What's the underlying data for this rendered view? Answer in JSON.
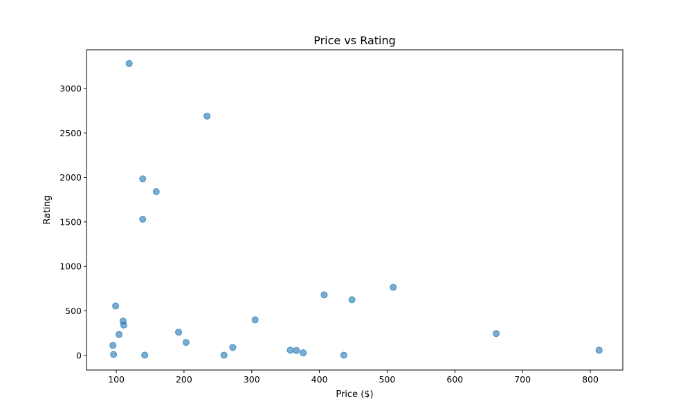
{
  "chart_data": {
    "type": "scatter",
    "title": "Price vs Rating",
    "xlabel": "Price ($)",
    "ylabel": "Rating",
    "xlim": [
      56,
      848
    ],
    "ylim": [
      -165,
      3435
    ],
    "xticks": [
      100,
      200,
      300,
      400,
      500,
      600,
      700,
      800
    ],
    "yticks": [
      0,
      500,
      1000,
      1500,
      2000,
      2500,
      3000
    ],
    "grid": false,
    "legend": "none",
    "colors": {
      "marker_fill": "#1f77b4",
      "marker_edge": "#1f77b4",
      "marker_alpha": 0.6
    },
    "points": [
      {
        "x": 119,
        "y": 3280
      },
      {
        "x": 234,
        "y": 2690
      },
      {
        "x": 139,
        "y": 1985
      },
      {
        "x": 159,
        "y": 1840
      },
      {
        "x": 139,
        "y": 1530
      },
      {
        "x": 99,
        "y": 555
      },
      {
        "x": 110,
        "y": 385
      },
      {
        "x": 111,
        "y": 340
      },
      {
        "x": 104,
        "y": 235
      },
      {
        "x": 95,
        "y": 112
      },
      {
        "x": 96,
        "y": 10
      },
      {
        "x": 142,
        "y": 2
      },
      {
        "x": 192,
        "y": 260
      },
      {
        "x": 203,
        "y": 145
      },
      {
        "x": 259,
        "y": 2
      },
      {
        "x": 272,
        "y": 90
      },
      {
        "x": 305,
        "y": 400
      },
      {
        "x": 357,
        "y": 58
      },
      {
        "x": 366,
        "y": 55
      },
      {
        "x": 376,
        "y": 28
      },
      {
        "x": 407,
        "y": 680
      },
      {
        "x": 436,
        "y": 2
      },
      {
        "x": 448,
        "y": 625
      },
      {
        "x": 509,
        "y": 765
      },
      {
        "x": 661,
        "y": 245
      },
      {
        "x": 813,
        "y": 58
      }
    ]
  }
}
